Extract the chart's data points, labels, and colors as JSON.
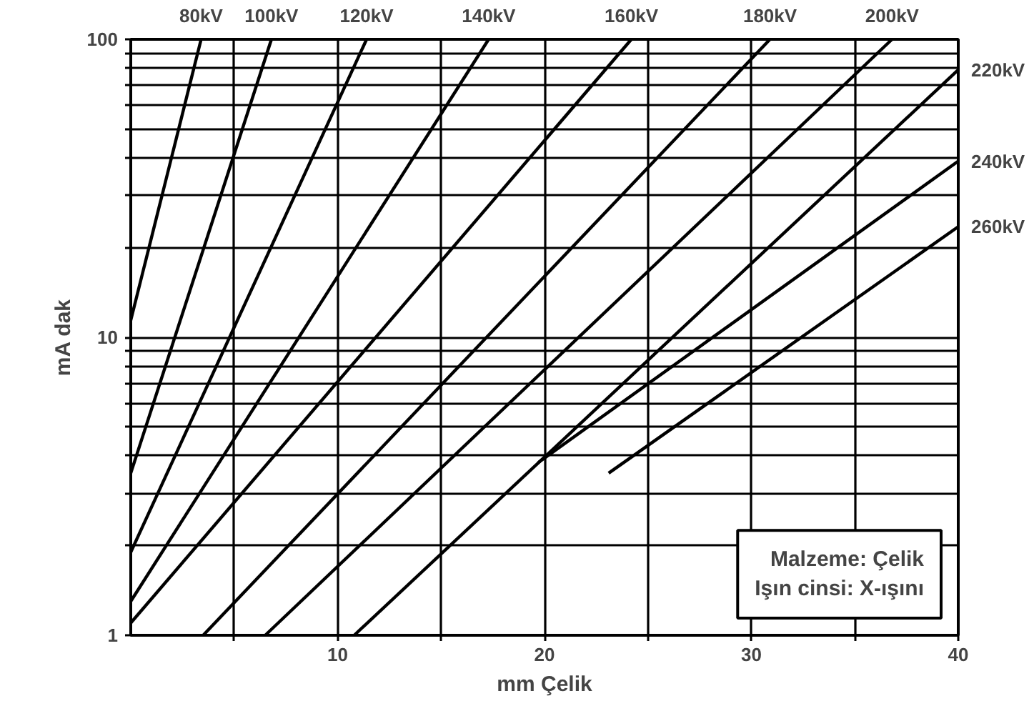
{
  "chart_data": {
    "type": "line",
    "xlabel": "mm Çelik",
    "ylabel": "mA dak",
    "xlim": [
      0,
      40
    ],
    "xticks": [
      {
        "value": 5,
        "label": null
      },
      10,
      {
        "value": 15,
        "label": null
      },
      20,
      {
        "value": 25,
        "label": null
      },
      30,
      {
        "value": 35,
        "label": null
      },
      40
    ],
    "ylim": [
      1,
      100
    ],
    "yticks": [
      1,
      {
        "value": 2,
        "label": null
      },
      {
        "value": 3,
        "label": null
      },
      {
        "value": 4,
        "label": null
      },
      {
        "value": 5,
        "label": null
      },
      {
        "value": 6,
        "label": null
      },
      {
        "value": 7,
        "label": null
      },
      {
        "value": 8,
        "label": null
      },
      {
        "value": 9,
        "label": null
      },
      10,
      {
        "value": 20,
        "label": null
      },
      {
        "value": 30,
        "label": null
      },
      {
        "value": 40,
        "label": null
      },
      {
        "value": 50,
        "label": null
      },
      {
        "value": 60,
        "label": null
      },
      {
        "value": 70,
        "label": null
      },
      {
        "value": 80,
        "label": null
      },
      {
        "value": 90,
        "label": null
      },
      100
    ],
    "log": "y",
    "grid": true,
    "marker": "none",
    "line_style": "solid",
    "series": [
      {
        "name": "80kV",
        "color": "#000000",
        "x": [
          0,
          3.4
        ],
        "values": [
          11.4,
          100
        ]
      },
      {
        "name": "100kV",
        "color": "#000000",
        "x": [
          0,
          6.8
        ],
        "values": [
          3.5,
          100
        ]
      },
      {
        "name": "120kV",
        "color": "#000000",
        "x": [
          0,
          11.4
        ],
        "values": [
          1.9,
          100
        ]
      },
      {
        "name": "140kV",
        "color": "#000000",
        "x": [
          0,
          17.3
        ],
        "values": [
          1.3,
          100
        ]
      },
      {
        "name": "160kV",
        "color": "#000000",
        "x": [
          0,
          24.2
        ],
        "values": [
          1.1,
          100
        ]
      },
      {
        "name": "180kV",
        "color": "#000000",
        "x": [
          3.5,
          30.9
        ],
        "values": [
          1,
          100
        ]
      },
      {
        "name": "200kV",
        "color": "#000000",
        "x": [
          6.5,
          36.8
        ],
        "values": [
          1,
          100
        ]
      },
      {
        "name": "220kV",
        "color": "#000000",
        "x": [
          10.8,
          40
        ],
        "values": [
          1,
          79
        ]
      },
      {
        "name": "240kV",
        "color": "#000000",
        "x": [
          19.7,
          40
        ],
        "values": [
          3.8,
          39
        ]
      },
      {
        "name": "260kV",
        "color": "#000000",
        "x": [
          23.1,
          40
        ],
        "values": [
          3.5,
          23.5
        ]
      }
    ],
    "annotations": [
      "Malzeme: Çelik",
      "Işın cinsi: X-ışını"
    ]
  }
}
